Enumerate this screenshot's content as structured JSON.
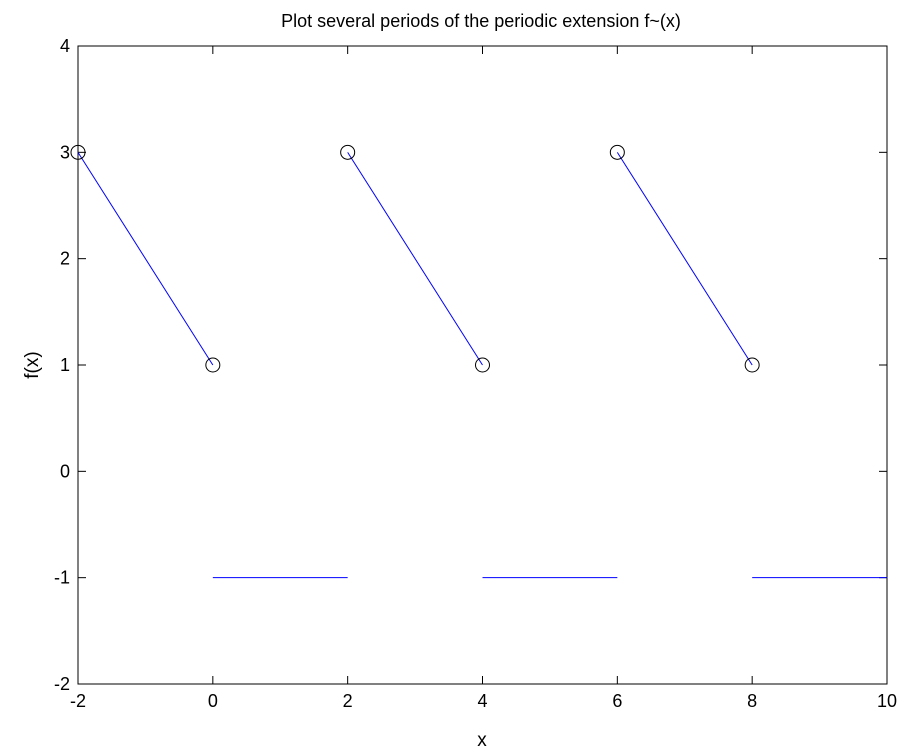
{
  "chart_data": {
    "type": "line",
    "title": "Plot several periods of the periodic extension f~(x)",
    "xlabel": "x",
    "ylabel": "f(x)",
    "xlim": [
      -2,
      10
    ],
    "ylim": [
      -2,
      4
    ],
    "xticks": [
      "-2",
      "0",
      "2",
      "4",
      "6",
      "8",
      "10"
    ],
    "yticks": [
      "-2",
      "-1",
      "0",
      "1",
      "2",
      "3",
      "4"
    ],
    "grid": false,
    "line_color": "#0000ff",
    "marker_color": "#000000",
    "segments": [
      {
        "x": [
          -2,
          0
        ],
        "y": [
          3,
          1
        ]
      },
      {
        "x": [
          0,
          2
        ],
        "y": [
          -1,
          -1
        ]
      },
      {
        "x": [
          2,
          4
        ],
        "y": [
          3,
          1
        ]
      },
      {
        "x": [
          4,
          6
        ],
        "y": [
          -1,
          -1
        ]
      },
      {
        "x": [
          6,
          8
        ],
        "y": [
          3,
          1
        ]
      },
      {
        "x": [
          8,
          10
        ],
        "y": [
          -1,
          -1
        ]
      }
    ],
    "markers": [
      {
        "x": -2,
        "y": 3
      },
      {
        "x": 0,
        "y": 1
      },
      {
        "x": 2,
        "y": 3
      },
      {
        "x": 4,
        "y": 1
      },
      {
        "x": 6,
        "y": 3
      },
      {
        "x": 8,
        "y": 1
      }
    ]
  }
}
